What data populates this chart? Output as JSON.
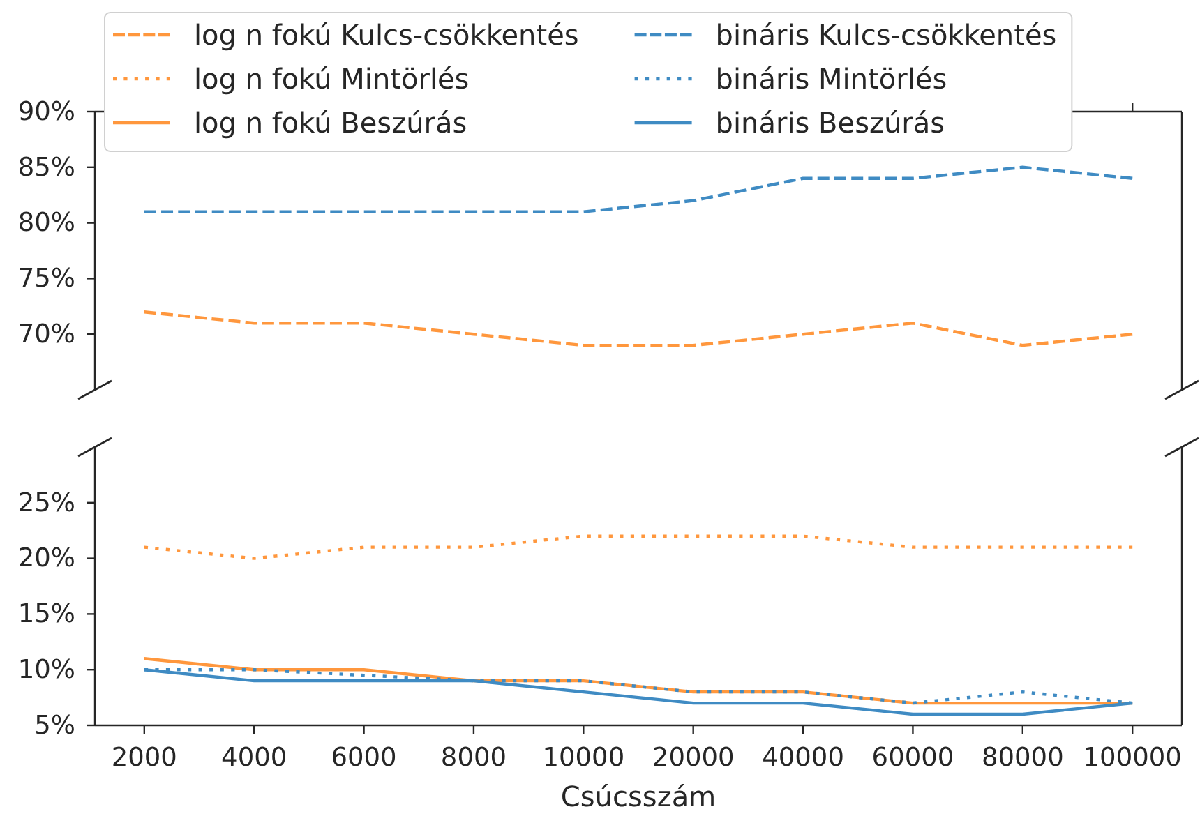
{
  "chart_data": [
    {
      "type": "line",
      "categories": [
        "2000",
        "4000",
        "6000",
        "8000",
        "10000",
        "20000",
        "40000",
        "60000",
        "80000",
        "100000"
      ],
      "ylim": [
        65,
        90
      ],
      "yticks": [
        {
          "value": 70,
          "label": "70%"
        },
        {
          "value": 75,
          "label": "75%"
        },
        {
          "value": 80,
          "label": "80%"
        },
        {
          "value": 85,
          "label": "85%"
        },
        {
          "value": 90,
          "label": "90%"
        }
      ],
      "tick_labels": "y",
      "legend": "top",
      "series": [
        {
          "name": "log n fokú Kulcs-csökkentés",
          "color": "#ff973d",
          "line_style": "dashed",
          "values": [
            72,
            71,
            71,
            70,
            69,
            69,
            70,
            71,
            69,
            70
          ]
        },
        {
          "name": "bináris Kulcs-csökkentés",
          "color": "#3f8bc3",
          "line_style": "dashed",
          "values": [
            81,
            81,
            81,
            81,
            81,
            82,
            84,
            84,
            85,
            84
          ]
        }
      ]
    },
    {
      "type": "line",
      "categories": [
        "2000",
        "4000",
        "6000",
        "8000",
        "10000",
        "20000",
        "40000",
        "60000",
        "80000",
        "100000"
      ],
      "xlabel": "Csúcsszám",
      "ylim": [
        5,
        30
      ],
      "yticks": [
        {
          "value": 5,
          "label": "5%"
        },
        {
          "value": 10,
          "label": "10%"
        },
        {
          "value": 15,
          "label": "15%"
        },
        {
          "value": 20,
          "label": "20%"
        },
        {
          "value": 25,
          "label": "25%"
        }
      ],
      "legend": "top",
      "series": [
        {
          "name": "log n fokú Mintörlés",
          "color": "#ff973d",
          "line_style": "dotted",
          "values": [
            21,
            20,
            21,
            21,
            22,
            22,
            22,
            21,
            21,
            21
          ]
        },
        {
          "name": "log n fokú Beszúrás",
          "color": "#ff973d",
          "line_style": "solid",
          "values": [
            11,
            10,
            10,
            9,
            9,
            8,
            8,
            7,
            7,
            7
          ]
        },
        {
          "name": "bináris Mintörlés",
          "color": "#3f8bc3",
          "line_style": "dotted",
          "values": [
            10,
            10,
            9.5,
            9,
            9,
            8,
            8,
            7,
            8,
            7
          ]
        },
        {
          "name": "bináris Beszúrás",
          "color": "#3f8bc3",
          "line_style": "solid",
          "values": [
            10,
            9,
            9,
            9,
            8,
            7,
            7,
            6,
            6,
            7
          ]
        }
      ]
    }
  ]
}
